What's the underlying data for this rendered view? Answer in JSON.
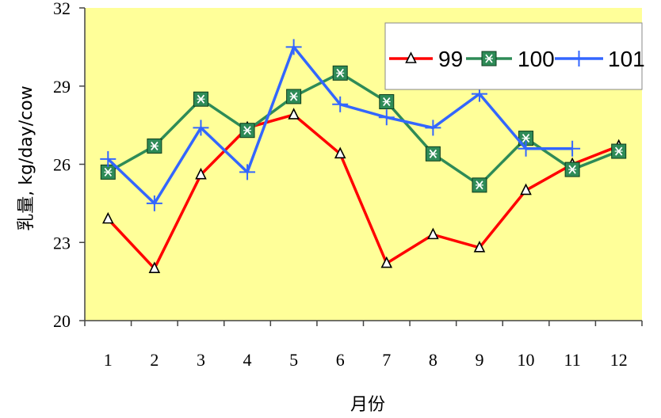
{
  "chart_data": {
    "type": "line",
    "title": "",
    "xlabel": "月份",
    "ylabel": "乳量, kg/day/cow",
    "categories": [
      "1",
      "2",
      "3",
      "4",
      "5",
      "6",
      "7",
      "8",
      "9",
      "10",
      "11",
      "12"
    ],
    "ylim": [
      20,
      32
    ],
    "yticks": [
      "20",
      "23",
      "26",
      "29",
      "32"
    ],
    "legend_position": "top-right",
    "grid": false,
    "plot_background": "#FFFF99",
    "series": [
      {
        "name": "99",
        "color": "#FF0000",
        "marker": "triangle",
        "values": [
          23.9,
          22.0,
          25.6,
          27.4,
          27.9,
          26.4,
          22.2,
          23.3,
          22.8,
          25.0,
          26.0,
          26.7
        ]
      },
      {
        "name": "100",
        "color": "#2E8B57",
        "marker": "x-square",
        "values": [
          25.7,
          26.7,
          28.5,
          27.3,
          28.6,
          29.5,
          28.4,
          26.4,
          25.2,
          27.0,
          25.8,
          26.5
        ]
      },
      {
        "name": "101",
        "color": "#3366FF",
        "marker": "plus",
        "values": [
          26.2,
          24.5,
          27.4,
          25.7,
          30.5,
          28.3,
          27.8,
          27.4,
          28.7,
          26.6,
          26.6,
          null
        ]
      }
    ]
  }
}
